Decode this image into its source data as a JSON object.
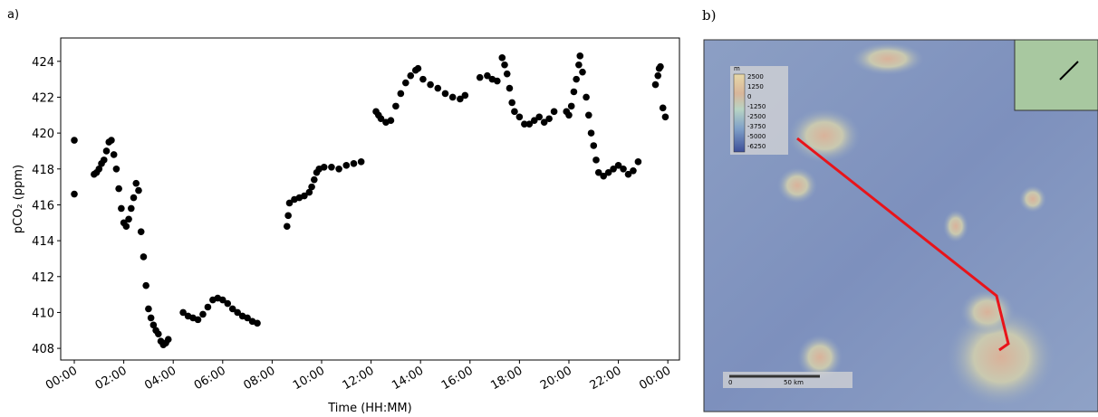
{
  "panels": {
    "a": "a)",
    "b": "b)"
  },
  "chart_data": {
    "type": "scatter",
    "x_label": "Time (HH:MM)",
    "y_label": "pCO₂ (ppm)",
    "x": [
      0.0,
      0.0,
      0.8,
      0.9,
      1.0,
      1.1,
      1.2,
      1.3,
      1.4,
      1.5,
      1.6,
      1.7,
      1.8,
      1.9,
      2.0,
      2.1,
      2.2,
      2.3,
      2.4,
      2.5,
      2.6,
      2.7,
      2.8,
      2.9,
      3.0,
      3.1,
      3.2,
      3.3,
      3.4,
      3.5,
      3.6,
      3.7,
      3.8,
      4.4,
      4.6,
      4.8,
      5.0,
      5.2,
      5.4,
      5.6,
      5.8,
      6.0,
      6.2,
      6.4,
      6.6,
      6.8,
      7.0,
      7.2,
      7.4,
      8.6,
      8.65,
      8.7,
      8.9,
      9.1,
      9.3,
      9.5,
      9.6,
      9.7,
      9.8,
      9.9,
      10.1,
      10.4,
      10.7,
      11.0,
      11.3,
      11.6,
      12.2,
      12.3,
      12.4,
      12.6,
      12.8,
      13.0,
      13.2,
      13.4,
      13.6,
      13.8,
      13.9,
      14.1,
      14.4,
      14.7,
      15.0,
      15.3,
      15.6,
      15.8,
      16.4,
      16.7,
      16.9,
      17.1,
      17.3,
      17.4,
      17.5,
      17.6,
      17.7,
      17.8,
      18.0,
      18.2,
      18.4,
      18.6,
      18.8,
      19.0,
      19.2,
      19.4,
      19.9,
      20.0,
      20.1,
      20.2,
      20.3,
      20.4,
      20.45,
      20.55,
      20.7,
      20.8,
      20.9,
      21.0,
      21.1,
      21.2,
      21.4,
      21.6,
      21.8,
      22.0,
      22.2,
      22.4,
      22.6,
      22.8,
      23.5,
      23.6,
      23.65,
      23.7,
      23.8,
      23.9
    ],
    "series": [
      {
        "color": "#000000",
        "values": [
          419.6,
          416.6,
          417.7,
          417.8,
          418.0,
          418.3,
          418.5,
          419.0,
          419.5,
          419.6,
          418.8,
          418.0,
          416.9,
          415.8,
          415.0,
          414.8,
          415.2,
          415.8,
          416.4,
          417.2,
          416.8,
          414.5,
          413.1,
          411.5,
          410.2,
          409.7,
          409.3,
          409.0,
          408.8,
          408.4,
          408.2,
          408.3,
          408.5,
          410.0,
          409.8,
          409.7,
          409.6,
          409.9,
          410.3,
          410.7,
          410.8,
          410.7,
          410.5,
          410.2,
          410.0,
          409.8,
          409.7,
          409.5,
          409.4,
          414.8,
          415.4,
          416.1,
          416.3,
          416.4,
          416.5,
          416.7,
          417.0,
          417.4,
          417.8,
          418.0,
          418.1,
          418.1,
          418.0,
          418.2,
          418.3,
          418.4,
          421.2,
          421.0,
          420.8,
          420.6,
          420.7,
          421.5,
          422.2,
          422.8,
          423.2,
          423.5,
          423.6,
          423.0,
          422.7,
          422.5,
          422.2,
          422.0,
          421.9,
          422.1,
          423.1,
          423.2,
          423.0,
          422.9,
          424.2,
          423.8,
          423.3,
          422.5,
          421.7,
          421.2,
          420.9,
          420.5,
          420.5,
          420.7,
          420.9,
          420.6,
          420.8,
          421.2,
          421.2,
          421.0,
          421.5,
          422.3,
          423.0,
          423.8,
          424.3,
          423.4,
          422.0,
          421.0,
          420.0,
          419.3,
          418.5,
          417.8,
          417.6,
          417.8,
          418.0,
          418.2,
          418.0,
          417.7,
          417.9,
          418.4,
          422.7,
          423.2,
          423.6,
          423.7,
          421.4,
          420.9
        ]
      }
    ],
    "xlim": [
      -0.55,
      24.47
    ],
    "ylim": [
      407.35,
      425.3
    ],
    "xticks": [
      {
        "value": 0,
        "label": "00:00"
      },
      {
        "value": 2,
        "label": "02:00"
      },
      {
        "value": 4,
        "label": "04:00"
      },
      {
        "value": 6,
        "label": "06:00"
      },
      {
        "value": 8,
        "label": "08:00"
      },
      {
        "value": 10,
        "label": "10:00"
      },
      {
        "value": 12,
        "label": "12:00"
      },
      {
        "value": 14,
        "label": "14:00"
      },
      {
        "value": 16,
        "label": "16:00"
      },
      {
        "value": 18,
        "label": "18:00"
      },
      {
        "value": 20,
        "label": "20:00"
      },
      {
        "value": 22,
        "label": "22:00"
      },
      {
        "value": 24,
        "label": "00:00"
      }
    ],
    "yticks": [
      408,
      410,
      412,
      414,
      416,
      418,
      420,
      422,
      424
    ]
  },
  "map": {
    "legend_unit": "m",
    "legend_values": [
      "2500",
      "1250",
      "0",
      "-1250",
      "-2500",
      "-3750",
      "-5000",
      "-6250"
    ],
    "scale_labels": [
      "0",
      "50 km"
    ]
  }
}
